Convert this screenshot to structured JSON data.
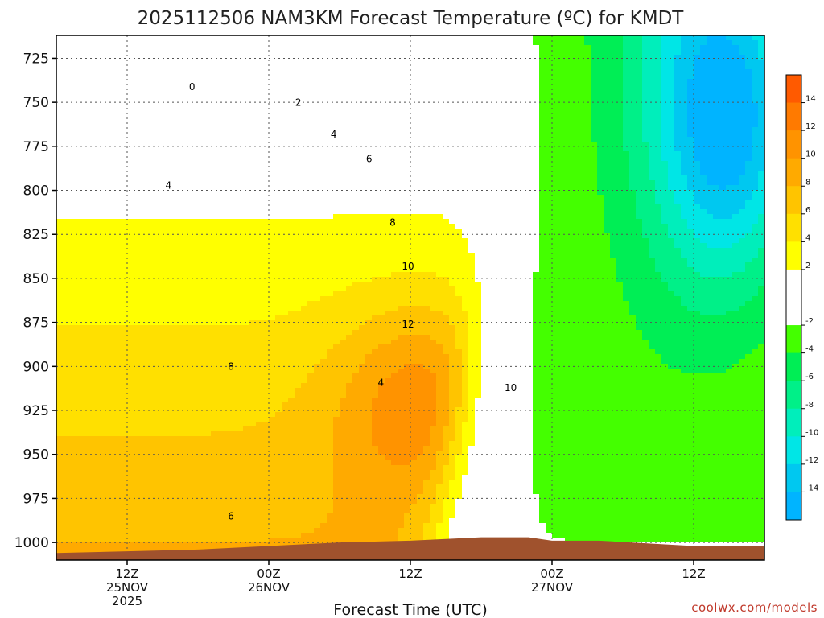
{
  "chart_data": {
    "type": "heatmap",
    "title": "2025112506 NAM3KM Forecast Temperature (ºC) for KMDT",
    "xlabel": "Forecast Time (UTC)",
    "ylabel": "",
    "credit": "coolwx.com/models",
    "y_axis": {
      "ticks": [
        725,
        750,
        775,
        800,
        825,
        850,
        875,
        900,
        925,
        950,
        975,
        1000
      ],
      "range": [
        1010,
        712
      ],
      "units": "hPa"
    },
    "x_axis": {
      "ticks": [
        {
          "hour": 12,
          "lines": [
            "12Z",
            "25NOV",
            "2025"
          ]
        },
        {
          "hour": 24,
          "lines": [
            "00Z",
            "26NOV"
          ]
        },
        {
          "hour": 36,
          "lines": [
            "12Z"
          ]
        },
        {
          "hour": 48,
          "lines": [
            "00Z",
            "27NOV"
          ]
        },
        {
          "hour": 60,
          "lines": [
            "12Z"
          ]
        }
      ],
      "range": [
        6,
        66
      ]
    },
    "colorbar": {
      "labels": [
        "14",
        "12",
        "10",
        "8",
        "6",
        "4",
        "2",
        "-2",
        "-4",
        "-6",
        "-8",
        "-10",
        "-12",
        "-14"
      ]
    },
    "contour_labels": [
      {
        "text": "0",
        "hour": 17.5,
        "hpa": 743
      },
      {
        "text": "2",
        "hour": 26.5,
        "hpa": 752
      },
      {
        "text": "4",
        "hour": 29.5,
        "hpa": 770
      },
      {
        "text": "4",
        "hour": 15.5,
        "hpa": 799
      },
      {
        "text": "6",
        "hour": 32.5,
        "hpa": 784
      },
      {
        "text": "8",
        "hour": 34.5,
        "hpa": 820
      },
      {
        "text": "10",
        "hour": 35.8,
        "hpa": 845
      },
      {
        "text": "12",
        "hour": 35.8,
        "hpa": 878
      },
      {
        "text": "8",
        "hour": 20.8,
        "hpa": 902
      },
      {
        "text": "10",
        "hour": 44.5,
        "hpa": 914
      },
      {
        "text": "6",
        "hour": 20.8,
        "hpa": 987
      },
      {
        "text": "4",
        "hour": 33.5,
        "hpa": 911
      }
    ],
    "temperature_structure": {
      "description_units": "degC",
      "warm_core_max": 13,
      "cold_pocket_min": -14
    }
  }
}
